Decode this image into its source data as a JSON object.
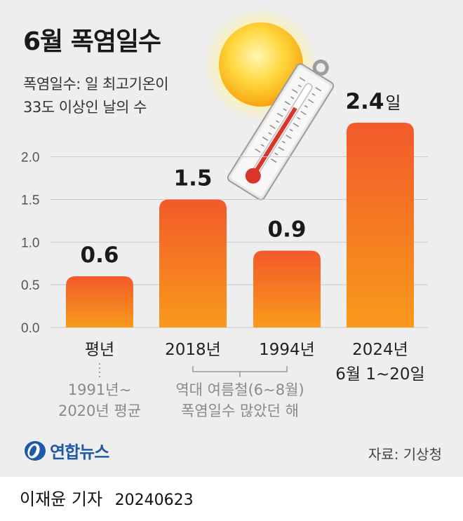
{
  "title": "6월 폭염일수",
  "subtitle": [
    "폭염일수: 일 최고기온이",
    "33도 이상인 날의 수"
  ],
  "chart_data": {
    "type": "bar",
    "categories": [
      "평년",
      "2018년",
      "1994년",
      "2024년"
    ],
    "category_sublabels": [
      "",
      "",
      "",
      "6월 1~20일"
    ],
    "values": [
      0.6,
      1.5,
      0.9,
      2.4
    ],
    "value_labels": [
      "0.6",
      "1.5",
      "0.9",
      "2.4"
    ],
    "value_unit": "일",
    "ylim": [
      0,
      2.4
    ],
    "yticks": [
      "0.0",
      "0.5",
      "1.0",
      "1.5",
      "2.0"
    ],
    "annotations": [
      {
        "target": "평년",
        "text": [
          "1991년~",
          "2020년 평균"
        ]
      },
      {
        "target": [
          "2018년",
          "1994년"
        ],
        "text": [
          "역대 여름철(6~8월)",
          "폭염일수 많았던 해"
        ]
      }
    ],
    "bar_color_top": "#f25a2a",
    "bar_color_bottom": "#f99a1b"
  },
  "brand": {
    "name": "연합뉴스",
    "color": "#1e5aa8"
  },
  "source": "자료: 기상청",
  "byline": {
    "author": "이재윤 기자",
    "date": "20240623"
  }
}
